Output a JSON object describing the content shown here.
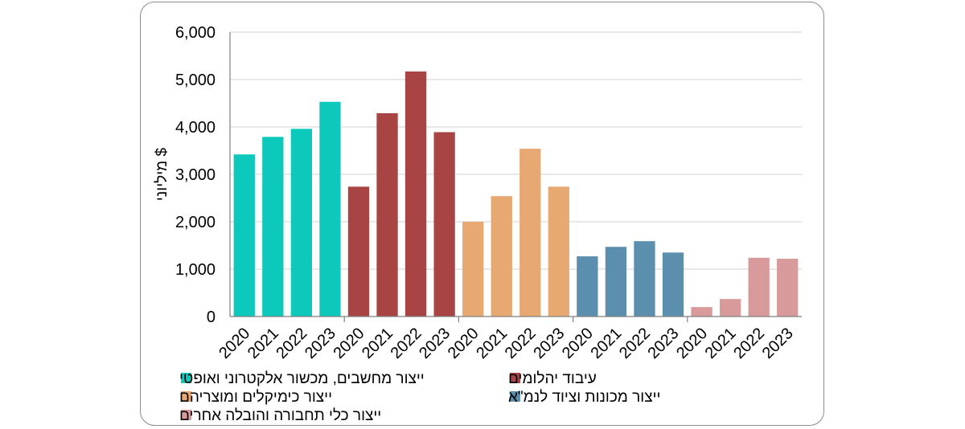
{
  "chart_data": {
    "type": "bar",
    "ylabel": "מיליוני $",
    "ylim": [
      0,
      6000
    ],
    "yticks": [
      0,
      1000,
      2000,
      3000,
      4000,
      5000,
      6000
    ],
    "ytick_labels": [
      "0",
      "1,000",
      "2,000",
      "3,000",
      "4,000",
      "5,000",
      "6,000"
    ],
    "grid": true,
    "legend_position": "bottom",
    "groups": [
      {
        "name": "ייצור מחשבים, מכשור אלקטרוני ואופטי",
        "color": "#0cc9bb",
        "years": [
          "2020",
          "2021",
          "2022",
          "2023"
        ],
        "values": [
          3420,
          3790,
          3960,
          4530
        ]
      },
      {
        "name": "עיבוד יהלומים",
        "color": "#a84444",
        "years": [
          "2020",
          "2021",
          "2022",
          "2023"
        ],
        "values": [
          2740,
          4290,
          5170,
          3890
        ]
      },
      {
        "name": "ייצור כימיקלים ומוצריהם",
        "color": "#e8a872",
        "years": [
          "2020",
          "2021",
          "2022",
          "2023"
        ],
        "values": [
          2000,
          2540,
          3540,
          2740
        ]
      },
      {
        "name": "ייצור מכונות וציוד לנמ\"א",
        "color": "#5b8fad",
        "years": [
          "2020",
          "2021",
          "2022",
          "2023"
        ],
        "values": [
          1270,
          1470,
          1590,
          1350
        ]
      },
      {
        "name": "ייצור כלי תחבורה והובלה אחרים",
        "color": "#d89a9a",
        "years": [
          "2020",
          "2021",
          "2022",
          "2023"
        ],
        "values": [
          200,
          370,
          1240,
          1220
        ]
      }
    ]
  }
}
